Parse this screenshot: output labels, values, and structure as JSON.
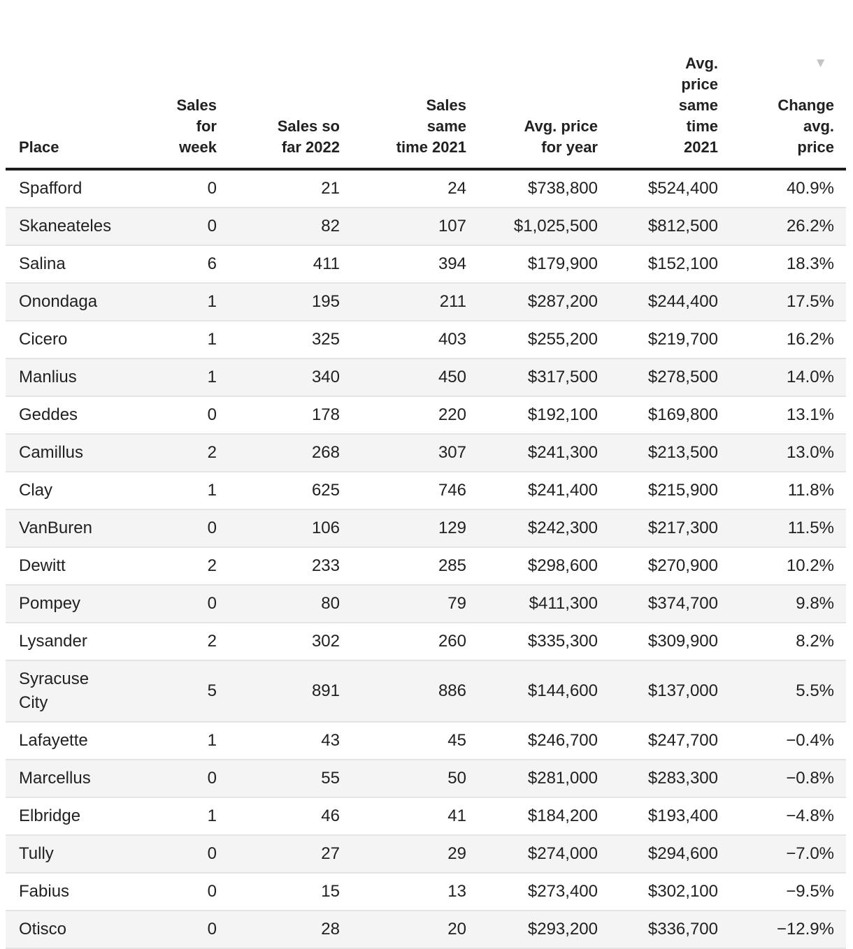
{
  "chart_data": {
    "type": "table",
    "columns": [
      {
        "key": "place",
        "label": "Place",
        "align": "left"
      },
      {
        "key": "sales_week",
        "label": "Sales\nfor\nweek",
        "align": "right"
      },
      {
        "key": "sales_2022",
        "label": "Sales so\nfar 2022",
        "align": "right"
      },
      {
        "key": "sales_2021",
        "label": "Sales\nsame\ntime 2021",
        "align": "right"
      },
      {
        "key": "avg_price_year",
        "label": "Avg. price\nfor year",
        "align": "right"
      },
      {
        "key": "avg_price_2021",
        "label": "Avg.\nprice\nsame\ntime\n2021",
        "align": "right"
      },
      {
        "key": "change_avg_price",
        "label": "Change\navg.\nprice",
        "align": "right"
      }
    ],
    "sort": {
      "column": "change_avg_price",
      "direction": "descending",
      "glyph": "▼"
    },
    "rows": [
      {
        "place": "Spafford",
        "sales_week": "0",
        "sales_2022": "21",
        "sales_2021": "24",
        "avg_price_year": "$738,800",
        "avg_price_2021": "$524,400",
        "change_avg_price": "40.9%"
      },
      {
        "place": "Skaneateles",
        "sales_week": "0",
        "sales_2022": "82",
        "sales_2021": "107",
        "avg_price_year": "$1,025,500",
        "avg_price_2021": "$812,500",
        "change_avg_price": "26.2%"
      },
      {
        "place": "Salina",
        "sales_week": "6",
        "sales_2022": "411",
        "sales_2021": "394",
        "avg_price_year": "$179,900",
        "avg_price_2021": "$152,100",
        "change_avg_price": "18.3%"
      },
      {
        "place": "Onondaga",
        "sales_week": "1",
        "sales_2022": "195",
        "sales_2021": "211",
        "avg_price_year": "$287,200",
        "avg_price_2021": "$244,400",
        "change_avg_price": "17.5%"
      },
      {
        "place": "Cicero",
        "sales_week": "1",
        "sales_2022": "325",
        "sales_2021": "403",
        "avg_price_year": "$255,200",
        "avg_price_2021": "$219,700",
        "change_avg_price": "16.2%"
      },
      {
        "place": "Manlius",
        "sales_week": "1",
        "sales_2022": "340",
        "sales_2021": "450",
        "avg_price_year": "$317,500",
        "avg_price_2021": "$278,500",
        "change_avg_price": "14.0%"
      },
      {
        "place": "Geddes",
        "sales_week": "0",
        "sales_2022": "178",
        "sales_2021": "220",
        "avg_price_year": "$192,100",
        "avg_price_2021": "$169,800",
        "change_avg_price": "13.1%"
      },
      {
        "place": "Camillus",
        "sales_week": "2",
        "sales_2022": "268",
        "sales_2021": "307",
        "avg_price_year": "$241,300",
        "avg_price_2021": "$213,500",
        "change_avg_price": "13.0%"
      },
      {
        "place": "Clay",
        "sales_week": "1",
        "sales_2022": "625",
        "sales_2021": "746",
        "avg_price_year": "$241,400",
        "avg_price_2021": "$215,900",
        "change_avg_price": "11.8%"
      },
      {
        "place": "VanBuren",
        "sales_week": "0",
        "sales_2022": "106",
        "sales_2021": "129",
        "avg_price_year": "$242,300",
        "avg_price_2021": "$217,300",
        "change_avg_price": "11.5%"
      },
      {
        "place": "Dewitt",
        "sales_week": "2",
        "sales_2022": "233",
        "sales_2021": "285",
        "avg_price_year": "$298,600",
        "avg_price_2021": "$270,900",
        "change_avg_price": "10.2%"
      },
      {
        "place": "Pompey",
        "sales_week": "0",
        "sales_2022": "80",
        "sales_2021": "79",
        "avg_price_year": "$411,300",
        "avg_price_2021": "$374,700",
        "change_avg_price": "9.8%"
      },
      {
        "place": "Lysander",
        "sales_week": "2",
        "sales_2022": "302",
        "sales_2021": "260",
        "avg_price_year": "$335,300",
        "avg_price_2021": "$309,900",
        "change_avg_price": "8.2%"
      },
      {
        "place": "Syracuse\nCity",
        "sales_week": "5",
        "sales_2022": "891",
        "sales_2021": "886",
        "avg_price_year": "$144,600",
        "avg_price_2021": "$137,000",
        "change_avg_price": "5.5%"
      },
      {
        "place": "Lafayette",
        "sales_week": "1",
        "sales_2022": "43",
        "sales_2021": "45",
        "avg_price_year": "$246,700",
        "avg_price_2021": "$247,700",
        "change_avg_price": "−0.4%"
      },
      {
        "place": "Marcellus",
        "sales_week": "0",
        "sales_2022": "55",
        "sales_2021": "50",
        "avg_price_year": "$281,000",
        "avg_price_2021": "$283,300",
        "change_avg_price": "−0.8%"
      },
      {
        "place": "Elbridge",
        "sales_week": "1",
        "sales_2022": "46",
        "sales_2021": "41",
        "avg_price_year": "$184,200",
        "avg_price_2021": "$193,400",
        "change_avg_price": "−4.8%"
      },
      {
        "place": "Tully",
        "sales_week": "0",
        "sales_2022": "27",
        "sales_2021": "29",
        "avg_price_year": "$274,000",
        "avg_price_2021": "$294,600",
        "change_avg_price": "−7.0%"
      },
      {
        "place": "Fabius",
        "sales_week": "0",
        "sales_2022": "15",
        "sales_2021": "13",
        "avg_price_year": "$273,400",
        "avg_price_2021": "$302,100",
        "change_avg_price": "−9.5%"
      },
      {
        "place": "Otisco",
        "sales_week": "0",
        "sales_2022": "28",
        "sales_2021": "20",
        "avg_price_year": "$293,200",
        "avg_price_2021": "$336,700",
        "change_avg_price": "−12.9%"
      }
    ]
  },
  "colors": {
    "text": "#212121",
    "alt_row_bg": "#f4f4f4",
    "row_divider": "#e4e4e4",
    "header_border": "#1c1c1c",
    "sort_icon": "#c4c4c4"
  }
}
